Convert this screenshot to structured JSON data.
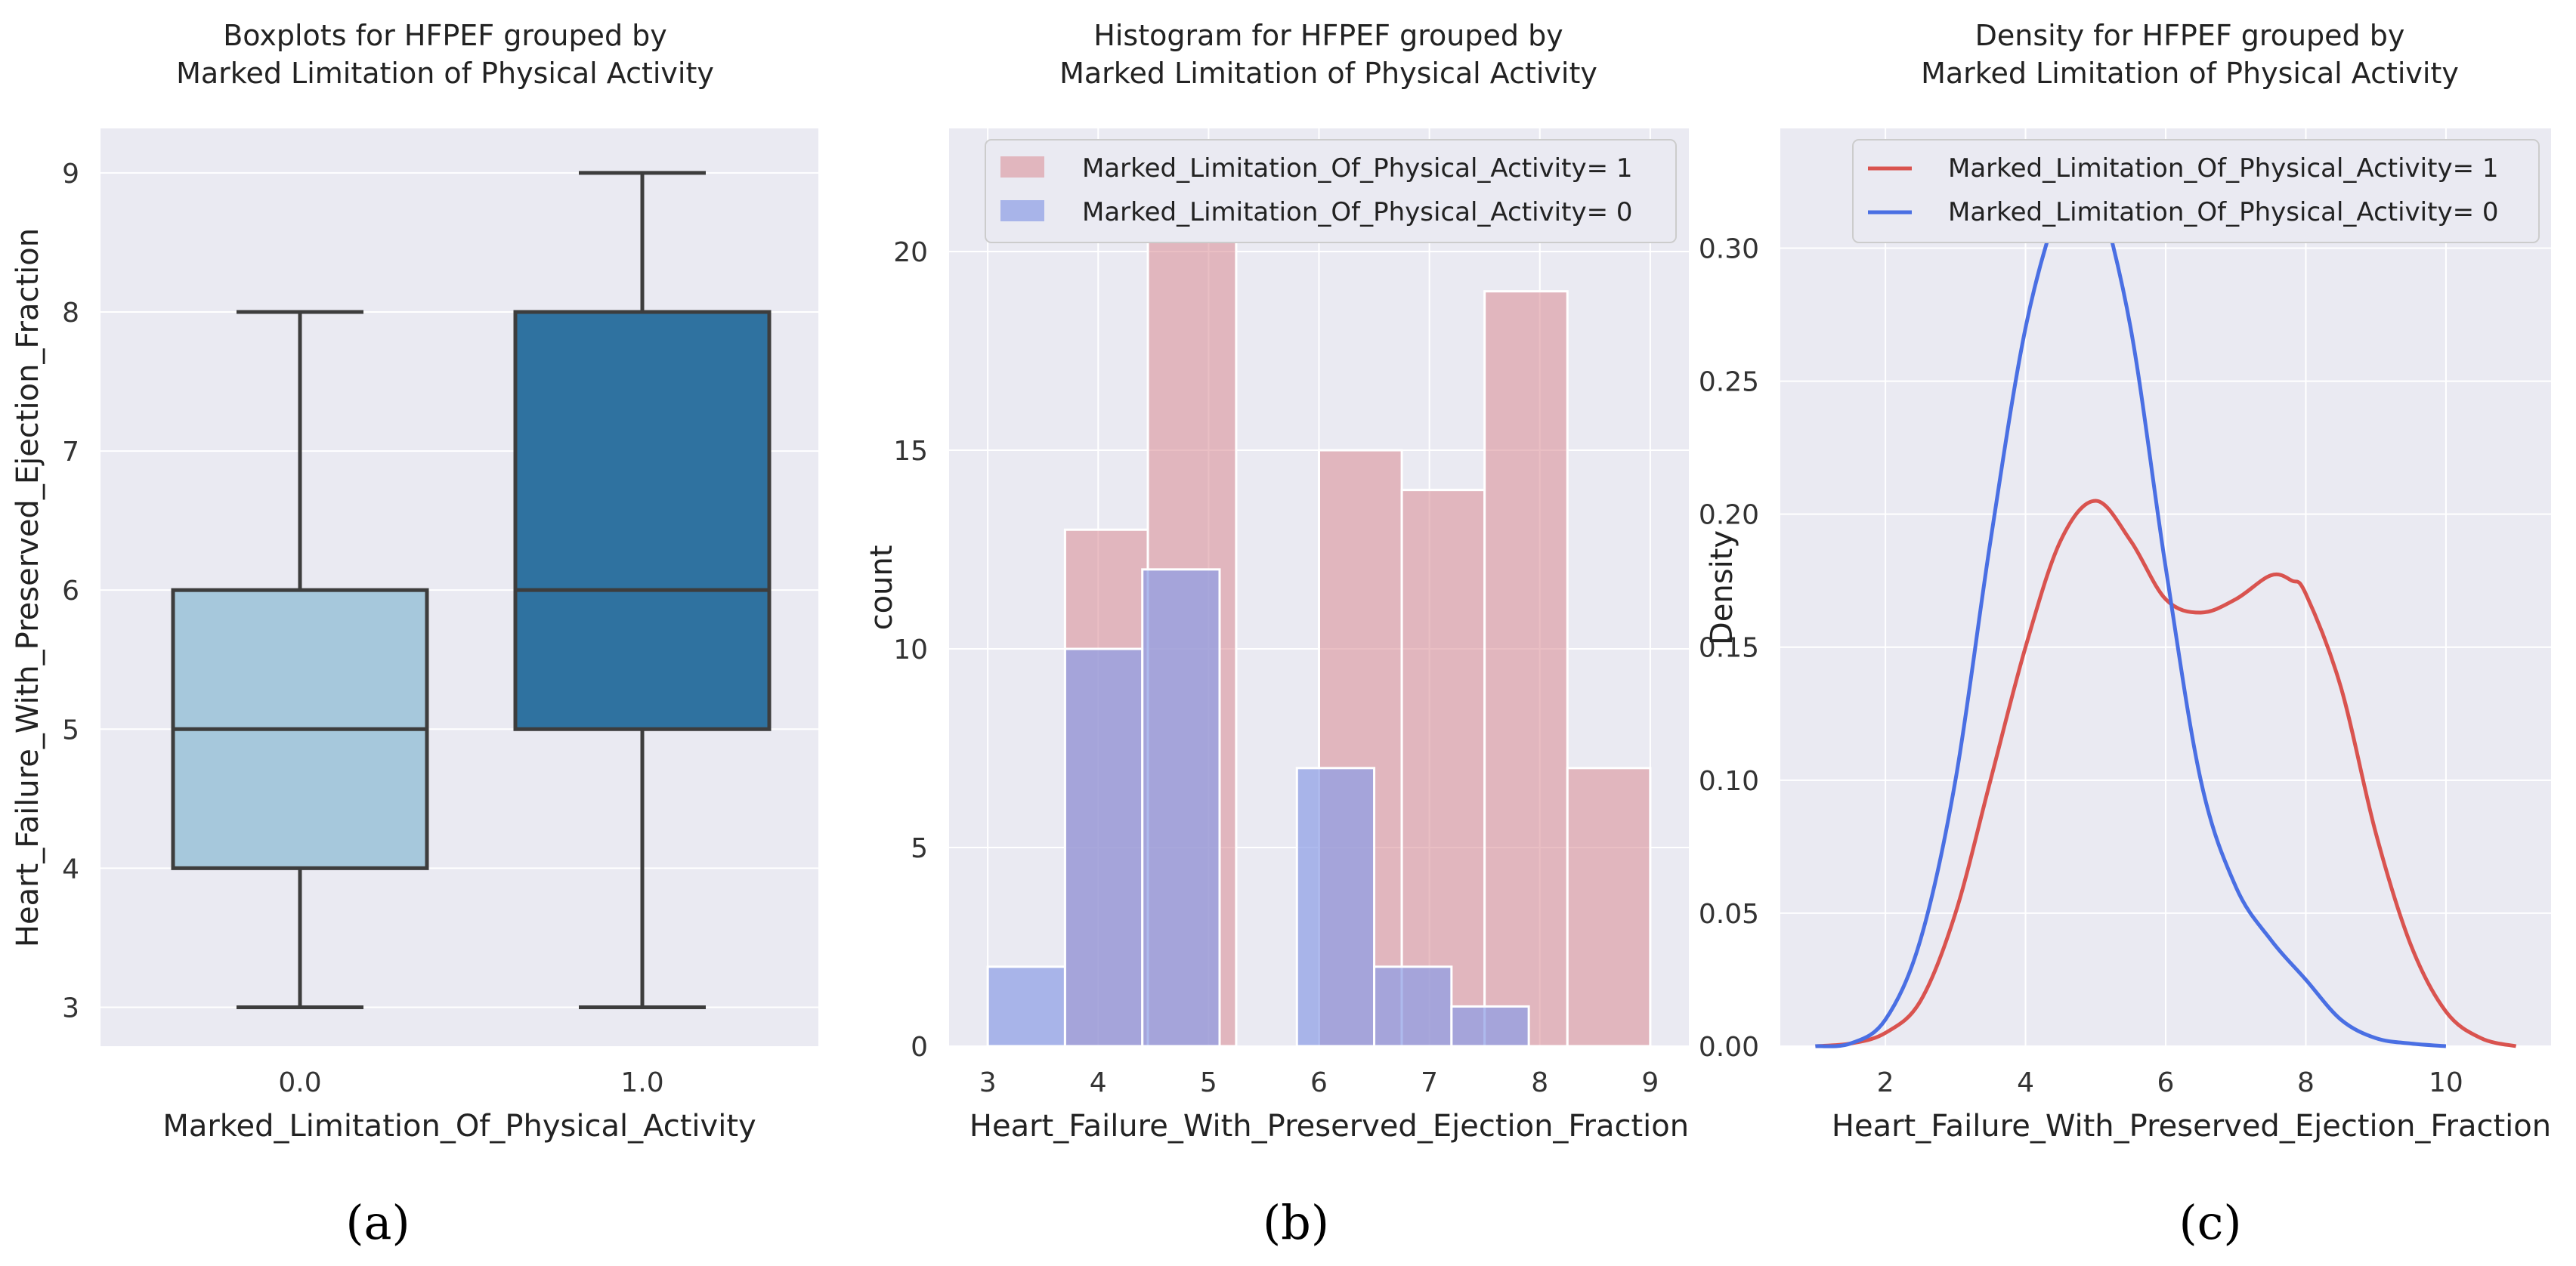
{
  "chart_data": [
    {
      "type": "box",
      "panel_label": "(a)",
      "title_lines": [
        "Boxplots for HFPEF grouped by",
        "Marked Limitation of Physical Activity"
      ],
      "xlabel": "Marked_Limitation_Of_Physical_Activity",
      "ylabel": "Heart_Failure_With_Preserved_Ejection_Fraction",
      "categories": [
        "0.0",
        "1.0"
      ],
      "ylim": [
        2.72,
        9.32
      ],
      "yticks": [
        "3",
        "4",
        "5",
        "6",
        "7",
        "8",
        "9"
      ],
      "boxes": [
        {
          "category": "0.0",
          "min": 3,
          "q1": 4,
          "median": 5,
          "q3": 6,
          "max": 8,
          "color": "#a6c8dc"
        },
        {
          "category": "1.0",
          "min": 3,
          "q1": 5,
          "median": 6,
          "q3": 8,
          "max": 9,
          "color": "#2f72a0"
        }
      ]
    },
    {
      "type": "histogram",
      "panel_label": "(b)",
      "title_lines": [
        "Histogram for HFPEF grouped by",
        "Marked Limitation of Physical Activity"
      ],
      "xlabel": "Heart_Failure_With_Preserved_Ejection_Fraction",
      "ylabel": "count",
      "xlim": [
        2.65,
        9.35
      ],
      "ylim": [
        0,
        23.1
      ],
      "xticks": [
        "3",
        "4",
        "5",
        "6",
        "7",
        "8",
        "9"
      ],
      "yticks": [
        "0",
        "5",
        "10",
        "15",
        "20"
      ],
      "series": [
        {
          "name": "Marked_Limitation_Of_Physical_Activity= 1",
          "color": "#d98a94",
          "bins": [
            [
              3.0,
              3.7,
              0
            ],
            [
              3.7,
              4.45,
              13
            ],
            [
              4.45,
              5.25,
              22
            ],
            [
              6.0,
              6.75,
              15
            ],
            [
              6.75,
              7.5,
              14
            ],
            [
              7.5,
              8.25,
              19
            ],
            [
              8.25,
              9.0,
              7
            ]
          ]
        },
        {
          "name": "Marked_Limitation_Of_Physical_Activity= 0",
          "color": "#8c9ce6",
          "bins": [
            [
              3.0,
              3.7,
              2
            ],
            [
              3.7,
              4.4,
              10
            ],
            [
              4.4,
              5.1,
              12
            ],
            [
              5.8,
              6.5,
              7
            ],
            [
              6.5,
              7.2,
              2
            ],
            [
              7.2,
              7.9,
              1
            ]
          ]
        }
      ]
    },
    {
      "type": "line",
      "panel_label": "(c)",
      "title_lines": [
        "Density for HFPEF grouped by",
        "Marked Limitation of Physical Activity"
      ],
      "xlabel": "Heart_Failure_With_Preserved_Ejection_Fraction",
      "ylabel": "Density",
      "xlim": [
        0.5,
        11.5
      ],
      "ylim": [
        0,
        0.345
      ],
      "xticks": [
        "2",
        "4",
        "6",
        "8",
        "10"
      ],
      "yticks": [
        "0.00",
        "0.05",
        "0.10",
        "0.15",
        "0.20",
        "0.25",
        "0.30"
      ],
      "series": [
        {
          "name": "Marked_Limitation_Of_Physical_Activity= 1",
          "color": "#d9534f",
          "x": [
            1.0,
            1.5,
            2.0,
            2.5,
            3.0,
            3.5,
            4.0,
            4.5,
            5.0,
            5.5,
            6.0,
            6.5,
            7.0,
            7.5,
            7.8,
            8.0,
            8.5,
            9.0,
            9.5,
            10.0,
            10.5,
            11.0
          ],
          "y": [
            0.0,
            0.001,
            0.005,
            0.017,
            0.05,
            0.1,
            0.15,
            0.19,
            0.205,
            0.19,
            0.168,
            0.163,
            0.168,
            0.177,
            0.175,
            0.17,
            0.135,
            0.08,
            0.038,
            0.013,
            0.003,
            0.0
          ]
        },
        {
          "name": "Marked_Limitation_Of_Physical_Activity= 0",
          "color": "#4a6fe3",
          "x": [
            1.0,
            1.5,
            2.0,
            2.5,
            3.0,
            3.5,
            4.0,
            4.5,
            4.8,
            5.0,
            5.5,
            6.0,
            6.5,
            7.0,
            7.5,
            8.0,
            8.5,
            9.0,
            9.5,
            10.0
          ],
          "y": [
            0.0,
            0.001,
            0.01,
            0.04,
            0.1,
            0.19,
            0.27,
            0.318,
            0.33,
            0.325,
            0.27,
            0.18,
            0.1,
            0.06,
            0.04,
            0.025,
            0.01,
            0.003,
            0.001,
            0.0
          ]
        }
      ]
    }
  ]
}
